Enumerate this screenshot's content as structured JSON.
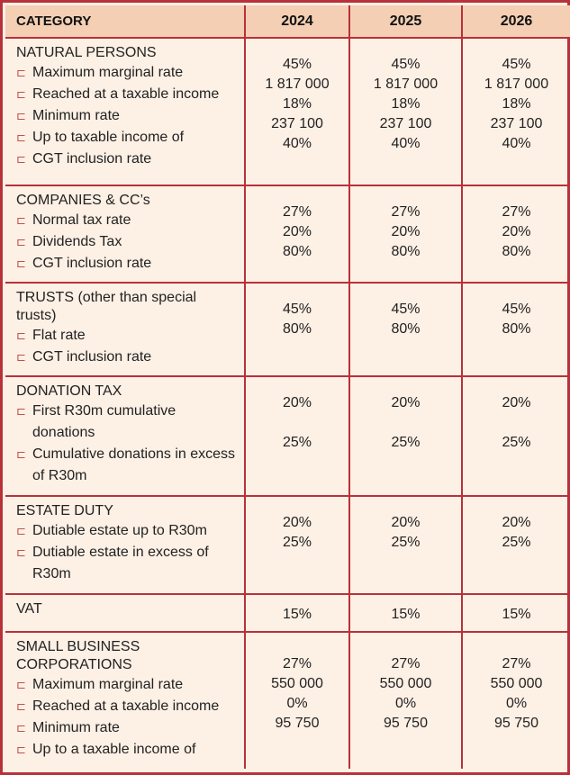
{
  "header": {
    "category": "CATEGORY",
    "years": [
      "2024",
      "2025",
      "2026"
    ]
  },
  "rows": [
    {
      "id": "natural-persons",
      "title": [
        "NATURAL PERSONS"
      ],
      "items": [
        [
          "Maximum marginal rate"
        ],
        [
          "Reached at a taxable income"
        ],
        [
          "Minimum rate"
        ],
        [
          "Up to taxable income of"
        ],
        [
          "CGT inclusion rate"
        ]
      ],
      "pad": 18,
      "values": [
        [
          [
            "45%"
          ],
          [
            "1 817 000"
          ],
          [
            "18%"
          ],
          [
            "237 100"
          ],
          [
            "40%"
          ]
        ],
        [
          [
            "45%"
          ],
          [
            "1 817 000"
          ],
          [
            "18%"
          ],
          [
            "237 100"
          ],
          [
            "40%"
          ]
        ],
        [
          [
            "45%"
          ],
          [
            "1 817 000"
          ],
          [
            "18%"
          ],
          [
            "237 100"
          ],
          [
            "40%"
          ]
        ]
      ]
    },
    {
      "id": "companies",
      "title": [
        "COMPANIES & CC’s"
      ],
      "items": [
        [
          "Normal tax rate"
        ],
        [
          "Dividends Tax"
        ],
        [
          "CGT inclusion rate"
        ]
      ],
      "pad": 18,
      "values": [
        [
          [
            "27%"
          ],
          [
            "20%"
          ],
          [
            "80%"
          ]
        ],
        [
          [
            "27%"
          ],
          [
            "20%"
          ],
          [
            "80%"
          ]
        ],
        [
          [
            "27%"
          ],
          [
            "20%"
          ],
          [
            "80%"
          ]
        ]
      ]
    },
    {
      "id": "trusts",
      "title": [
        "TRUSTS (other than special",
        "trusts)"
      ],
      "items": [
        [
          "Flat rate"
        ],
        [
          "CGT inclusion rate"
        ]
      ],
      "pad": 18,
      "values": [
        [
          [
            "45%"
          ],
          [
            "80%"
          ]
        ],
        [
          [
            "45%"
          ],
          [
            "80%"
          ]
        ],
        [
          [
            "45%"
          ],
          [
            "80%"
          ]
        ]
      ]
    },
    {
      "id": "donation-tax",
      "title": [
        "DONATION TAX"
      ],
      "items": [
        [
          "First R30m cumulative",
          "donations"
        ],
        [
          "Cumulative donations in excess",
          "of R30m"
        ]
      ],
      "pad": 18,
      "values": [
        [
          [
            "20%"
          ],
          [
            "25%"
          ]
        ],
        [
          [
            "20%"
          ],
          [
            "25%"
          ]
        ],
        [
          [
            "20%"
          ],
          [
            "25%"
          ]
        ]
      ]
    },
    {
      "id": "estate-duty",
      "title": [
        "ESTATE DUTY"
      ],
      "items": [
        [
          "Dutiable estate up to R30m"
        ],
        [
          "Dutiable estate in excess of",
          "R30m"
        ]
      ],
      "pad": 18,
      "values": [
        [
          [
            "20%"
          ],
          [
            "25%"
          ]
        ],
        [
          [
            "20%"
          ],
          [
            "25%"
          ]
        ],
        [
          [
            "20%"
          ],
          [
            "25%"
          ]
        ]
      ]
    },
    {
      "id": "vat",
      "title": [
        "VAT"
      ],
      "items": [],
      "pad": 0,
      "values": [
        [
          [
            "15%"
          ]
        ],
        [
          [
            "15%"
          ]
        ],
        [
          [
            "15%"
          ]
        ]
      ]
    },
    {
      "id": "small-business",
      "title": [
        "SMALL BUSINESS",
        "CORPORATIONS"
      ],
      "items": [
        [
          "Maximum marginal rate"
        ],
        [
          "Reached at a taxable income"
        ],
        [
          "Minimum rate"
        ],
        [
          "Up to a taxable income of"
        ]
      ],
      "pad": 24,
      "values": [
        [
          [
            "27%"
          ],
          [
            "550 000"
          ],
          [
            "0%"
          ],
          [
            "95 750"
          ]
        ],
        [
          [
            "27%"
          ],
          [
            "550 000"
          ],
          [
            "0%"
          ],
          [
            "95 750"
          ]
        ],
        [
          [
            "27%"
          ],
          [
            "550 000"
          ],
          [
            "0%"
          ],
          [
            "95 750"
          ]
        ]
      ]
    }
  ],
  "bullet_glyph": "⊏"
}
